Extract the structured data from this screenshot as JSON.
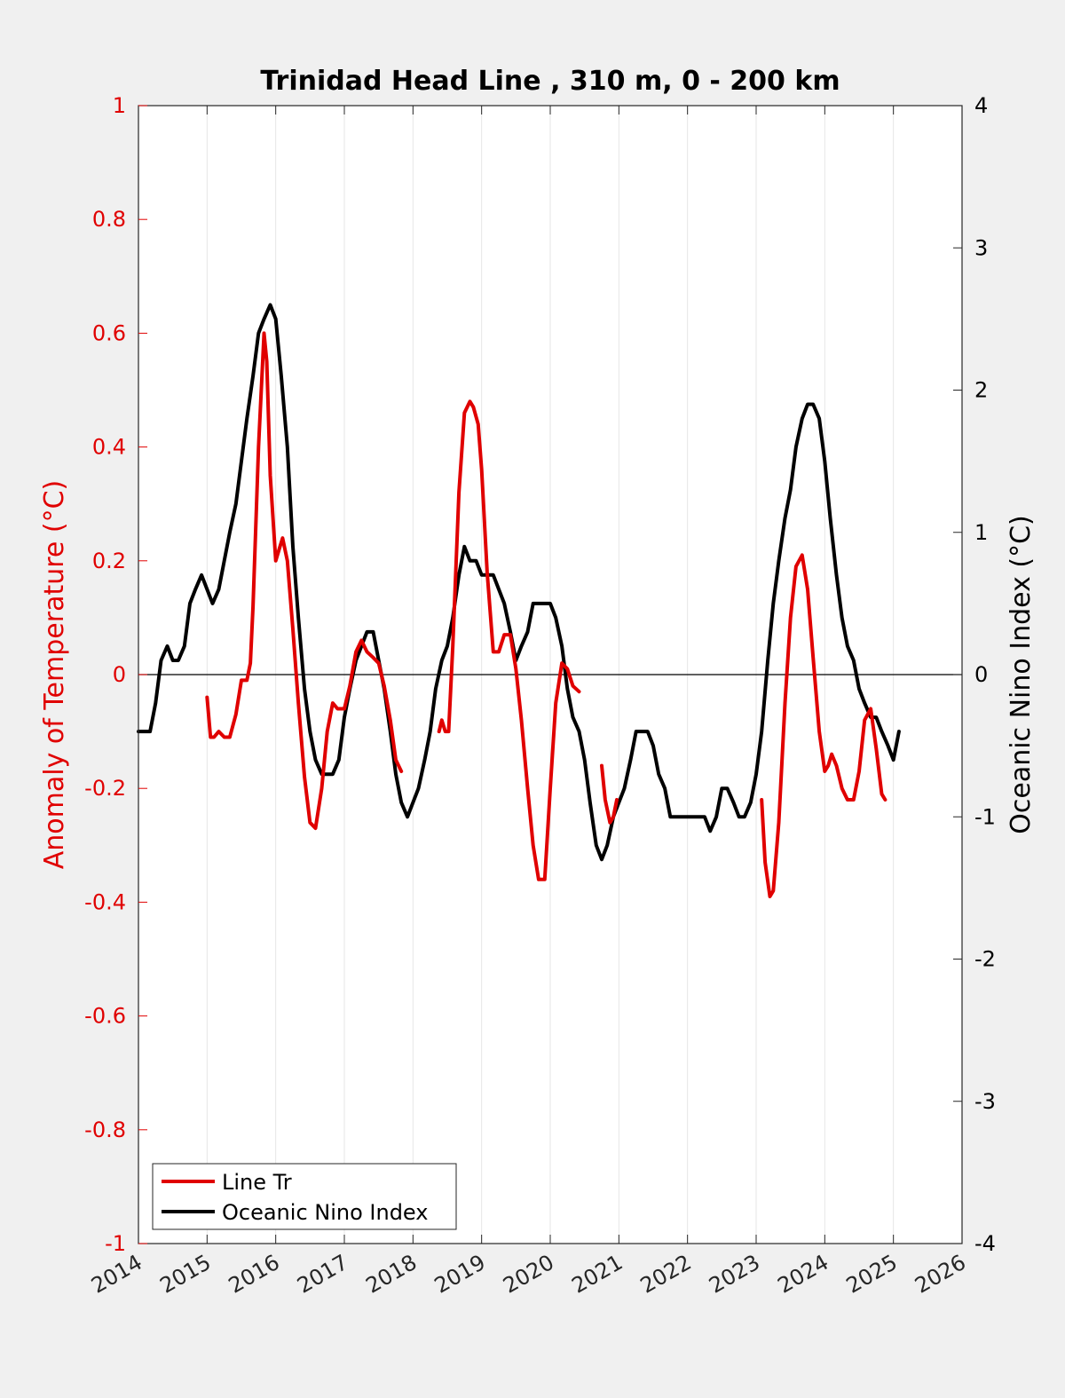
{
  "chart_data": {
    "type": "line",
    "title": "Trinidad Head Line , 310 m, 0 - 200 km",
    "ylabel_left": "Anomaly of Temperature (°C)",
    "ylabel_right": "Oceanic Nino Index (°C)",
    "xlim": [
      2014,
      2026
    ],
    "ylim_left": [
      -1,
      1
    ],
    "ylim_right": [
      -4,
      4
    ],
    "x_ticks": [
      2014,
      2015,
      2016,
      2017,
      2018,
      2019,
      2020,
      2021,
      2022,
      2023,
      2024,
      2025,
      2026
    ],
    "x_tick_labels": [
      "2014",
      "2015",
      "2016",
      "2017",
      "2018",
      "2019",
      "2020",
      "2021",
      "2022",
      "2023",
      "2024",
      "2025",
      "2026"
    ],
    "y_ticks_left": [
      -1,
      -0.8,
      -0.6,
      -0.4,
      -0.2,
      0,
      0.2,
      0.4,
      0.6,
      0.8,
      1
    ],
    "y_tick_labels_left": [
      "-1",
      "-0.8",
      "-0.6",
      "-0.4",
      "-0.2",
      "0",
      "0.2",
      "0.4",
      "0.6",
      "0.8",
      "1"
    ],
    "y_ticks_right": [
      -4,
      -3,
      -2,
      -1,
      0,
      1,
      2,
      3,
      4
    ],
    "y_tick_labels_right": [
      "-4",
      "-3",
      "-2",
      "-1",
      "0",
      "1",
      "2",
      "3",
      "4"
    ],
    "grid": "vertical",
    "legend_position": "bottom-left",
    "colors": {
      "line_tr": "#e00000",
      "oni": "#000000",
      "left_axis": "#e00000",
      "right_axis": "#000000"
    },
    "series": [
      {
        "name": "Line Tr",
        "axis": "left",
        "segments": [
          {
            "x": [
              2015.0,
              2015.05,
              2015.1,
              2015.17,
              2015.25,
              2015.33,
              2015.42,
              2015.5,
              2015.58,
              2015.63,
              2015.67,
              2015.75,
              2015.83,
              2015.87,
              2015.92,
              2016.0,
              2016.05,
              2016.1,
              2016.17,
              2016.25,
              2016.33,
              2016.42,
              2016.5,
              2016.58,
              2016.67,
              2016.75,
              2016.83,
              2016.9,
              2017.0,
              2017.08,
              2017.17,
              2017.25,
              2017.33,
              2017.42,
              2017.5,
              2017.58,
              2017.67,
              2017.75,
              2017.83
            ],
            "y": [
              -0.04,
              -0.11,
              -0.11,
              -0.1,
              -0.11,
              -0.11,
              -0.07,
              -0.01,
              -0.01,
              0.02,
              0.12,
              0.4,
              0.6,
              0.55,
              0.35,
              0.2,
              0.22,
              0.24,
              0.2,
              0.08,
              -0.05,
              -0.18,
              -0.26,
              -0.27,
              -0.2,
              -0.1,
              -0.05,
              -0.06,
              -0.06,
              -0.02,
              0.04,
              0.06,
              0.04,
              0.03,
              0.02,
              -0.02,
              -0.08,
              -0.15,
              -0.17
            ]
          },
          {
            "x": [
              2018.38,
              2018.42,
              2018.47,
              2018.52,
              2018.58,
              2018.67,
              2018.75,
              2018.83,
              2018.88,
              2018.95,
              2019.0,
              2019.08,
              2019.17,
              2019.25,
              2019.33,
              2019.42,
              2019.5,
              2019.58,
              2019.67,
              2019.75,
              2019.83,
              2019.92,
              2020.0,
              2020.08,
              2020.17,
              2020.25,
              2020.33,
              2020.42
            ],
            "y": [
              -0.1,
              -0.08,
              -0.1,
              -0.1,
              0.05,
              0.32,
              0.46,
              0.48,
              0.47,
              0.44,
              0.36,
              0.18,
              0.04,
              0.04,
              0.07,
              0.07,
              0.01,
              -0.08,
              -0.2,
              -0.3,
              -0.36,
              -0.36,
              -0.2,
              -0.05,
              0.02,
              0.01,
              -0.02,
              -0.03
            ]
          },
          {
            "x": [
              2020.75,
              2020.8,
              2020.87,
              2020.92,
              2020.97
            ],
            "y": [
              -0.16,
              -0.22,
              -0.26,
              -0.25,
              -0.22
            ]
          },
          {
            "x": [
              2023.08,
              2023.13,
              2023.2,
              2023.25,
              2023.33,
              2023.42,
              2023.5,
              2023.58,
              2023.67,
              2023.75,
              2023.83,
              2023.92,
              2024.0,
              2024.05,
              2024.1,
              2024.17,
              2024.25,
              2024.33,
              2024.42,
              2024.5,
              2024.58,
              2024.67,
              2024.75,
              2024.83,
              2024.88
            ],
            "y": [
              -0.22,
              -0.33,
              -0.39,
              -0.38,
              -0.26,
              -0.05,
              0.1,
              0.19,
              0.21,
              0.15,
              0.03,
              -0.1,
              -0.17,
              -0.16,
              -0.14,
              -0.16,
              -0.2,
              -0.22,
              -0.22,
              -0.17,
              -0.08,
              -0.06,
              -0.13,
              -0.21,
              -0.22
            ]
          }
        ]
      },
      {
        "name": "Oceanic Nino Index",
        "axis": "right",
        "segments": [
          {
            "x": [
              2014.0,
              2014.08,
              2014.17,
              2014.25,
              2014.33,
              2014.42,
              2014.5,
              2014.58,
              2014.67,
              2014.75,
              2014.83,
              2014.92,
              2015.0,
              2015.08,
              2015.17,
              2015.25,
              2015.33,
              2015.42,
              2015.5,
              2015.58,
              2015.67,
              2015.75,
              2015.83,
              2015.92,
              2016.0,
              2016.08,
              2016.17,
              2016.25,
              2016.33,
              2016.42,
              2016.5,
              2016.58,
              2016.67,
              2016.75,
              2016.83,
              2016.92,
              2017.0,
              2017.08,
              2017.17,
              2017.25,
              2017.33,
              2017.42,
              2017.5,
              2017.58,
              2017.67,
              2017.75,
              2017.83,
              2017.92,
              2018.0,
              2018.08,
              2018.17,
              2018.25,
              2018.33,
              2018.42,
              2018.5,
              2018.58,
              2018.67,
              2018.75,
              2018.83,
              2018.92,
              2019.0,
              2019.08,
              2019.17,
              2019.25,
              2019.33,
              2019.42,
              2019.5,
              2019.58,
              2019.67,
              2019.75,
              2019.83,
              2019.92,
              2020.0,
              2020.08,
              2020.17,
              2020.25,
              2020.33,
              2020.42,
              2020.5,
              2020.58,
              2020.67,
              2020.75,
              2020.83,
              2020.92,
              2021.0,
              2021.08,
              2021.17,
              2021.25,
              2021.33,
              2021.42,
              2021.5,
              2021.58,
              2021.67,
              2021.75,
              2021.83,
              2021.92,
              2022.0,
              2022.08,
              2022.17,
              2022.25,
              2022.33,
              2022.42,
              2022.5,
              2022.58,
              2022.67,
              2022.75,
              2022.83,
              2022.92,
              2023.0,
              2023.08,
              2023.17,
              2023.25,
              2023.33,
              2023.42,
              2023.5,
              2023.58,
              2023.67,
              2023.75,
              2023.83,
              2023.92,
              2024.0,
              2024.08,
              2024.17,
              2024.25,
              2024.33,
              2024.42,
              2024.5,
              2024.58,
              2024.67,
              2024.75,
              2024.83,
              2024.92,
              2025.0,
              2025.08
            ],
            "y": [
              -0.4,
              -0.4,
              -0.4,
              -0.2,
              0.1,
              0.2,
              0.1,
              0.1,
              0.2,
              0.5,
              0.6,
              0.7,
              0.6,
              0.5,
              0.6,
              0.8,
              1.0,
              1.2,
              1.5,
              1.8,
              2.1,
              2.4,
              2.5,
              2.6,
              2.5,
              2.1,
              1.6,
              0.9,
              0.4,
              -0.1,
              -0.4,
              -0.6,
              -0.7,
              -0.7,
              -0.7,
              -0.6,
              -0.3,
              -0.1,
              0.1,
              0.2,
              0.3,
              0.3,
              0.1,
              -0.1,
              -0.4,
              -0.7,
              -0.9,
              -1.0,
              -0.9,
              -0.8,
              -0.6,
              -0.4,
              -0.1,
              0.1,
              0.2,
              0.4,
              0.7,
              0.9,
              0.8,
              0.8,
              0.7,
              0.7,
              0.7,
              0.6,
              0.5,
              0.3,
              0.1,
              0.2,
              0.3,
              0.5,
              0.5,
              0.5,
              0.5,
              0.4,
              0.2,
              -0.1,
              -0.3,
              -0.4,
              -0.6,
              -0.9,
              -1.2,
              -1.3,
              -1.2,
              -1.0,
              -0.9,
              -0.8,
              -0.6,
              -0.4,
              -0.4,
              -0.4,
              -0.5,
              -0.7,
              -0.8,
              -1.0,
              -1.0,
              -1.0,
              -1.0,
              -1.0,
              -1.0,
              -1.0,
              -1.1,
              -1.0,
              -0.8,
              -0.8,
              -0.9,
              -1.0,
              -1.0,
              -0.9,
              -0.7,
              -0.4,
              0.1,
              0.5,
              0.8,
              1.1,
              1.3,
              1.6,
              1.8,
              1.9,
              1.9,
              1.8,
              1.5,
              1.1,
              0.7,
              0.4,
              0.2,
              0.1,
              -0.1,
              -0.2,
              -0.3,
              -0.3,
              -0.4,
              -0.5,
              -0.6,
              -0.4
            ]
          }
        ]
      }
    ]
  }
}
